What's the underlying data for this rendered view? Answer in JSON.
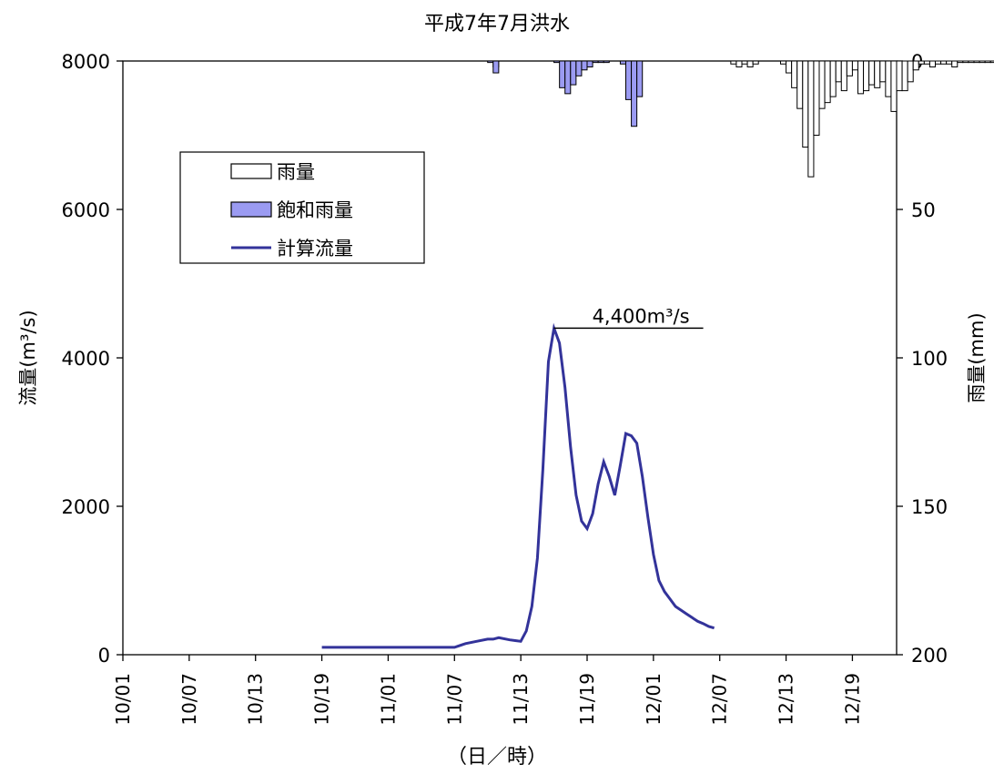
{
  "chart_data": {
    "type": "bar+line",
    "title": "平成7年7月洪水",
    "xlabel": "（日／時）",
    "ylabel_left": "流量(m³/s)",
    "ylabel_right": "雨量(mm)",
    "ylim_left": [
      0,
      8000
    ],
    "ylim_right": [
      200,
      0
    ],
    "left_ticks": [
      "0",
      "2000",
      "4000",
      "6000",
      "8000"
    ],
    "right_ticks": [
      "0",
      "50",
      "100",
      "150",
      "200"
    ],
    "x_ticks": [
      "10/01",
      "10/07",
      "10/13",
      "10/19",
      "11/01",
      "11/07",
      "11/13",
      "11/19",
      "12/01",
      "12/07",
      "12/13",
      "12/19"
    ],
    "legend": {
      "position": "upper-left",
      "rain": "雨量",
      "saturated_rain": "飽和雨量",
      "flow": "計算流量"
    },
    "annotation": {
      "text": "4,400m³/s",
      "value": 4400
    },
    "rainfall_mm": [
      0,
      0,
      0,
      0,
      0,
      0,
      0,
      0,
      0,
      0,
      0,
      0,
      0,
      0,
      0,
      0,
      0,
      0,
      0,
      0,
      0,
      0,
      0,
      0,
      0,
      0,
      0,
      0,
      0,
      0,
      0,
      0,
      0,
      0,
      0,
      0,
      0,
      0,
      0,
      0,
      0,
      0,
      0,
      0,
      0,
      0,
      0,
      0,
      0,
      0,
      0,
      0,
      0,
      0,
      0,
      0,
      0,
      0,
      0,
      0,
      0,
      0,
      0,
      0,
      0,
      0,
      0,
      2,
      0,
      0,
      0,
      0,
      0,
      0,
      0,
      0,
      0,
      0,
      0,
      0,
      0,
      0,
      0,
      0,
      0,
      0,
      0,
      0,
      0,
      0,
      0,
      0,
      0,
      0,
      0,
      0,
      0,
      0,
      0,
      0,
      0,
      0,
      0,
      0,
      0,
      0,
      0,
      0,
      0,
      0,
      1,
      2,
      1,
      2,
      1,
      0,
      0,
      0,
      0,
      1,
      4,
      9,
      16,
      29,
      39,
      25,
      16,
      14,
      12,
      7,
      10,
      5,
      3,
      11,
      10,
      8,
      9,
      7,
      12,
      17,
      10,
      10,
      7,
      3,
      1,
      1,
      2,
      1,
      1,
      1,
      2,
      0.5,
      0.5,
      0.5,
      0.5,
      0.5,
      0.5,
      0.5
    ],
    "saturated_rain_mm": [
      0,
      0,
      0,
      0,
      0,
      0,
      0,
      0,
      0,
      0,
      0,
      0,
      0,
      0,
      0,
      0,
      0,
      0,
      0,
      0,
      0,
      0,
      0,
      0,
      0,
      0,
      0,
      0,
      0,
      0,
      0,
      0,
      0,
      0,
      0,
      0,
      0,
      0,
      0,
      0,
      0,
      0,
      0,
      0,
      0,
      0,
      0,
      0,
      0,
      0,
      0,
      0,
      0,
      0,
      0,
      0,
      0,
      0,
      0,
      0,
      0,
      0,
      0,
      0,
      0,
      0,
      0.5,
      4,
      0,
      0,
      0,
      0,
      0,
      0,
      0,
      0,
      0,
      0,
      0.5,
      9,
      11,
      8,
      5,
      3,
      2,
      0.5,
      0.5,
      0.5,
      0,
      0,
      1,
      13,
      22,
      12,
      0,
      0,
      0,
      0,
      0,
      0,
      0,
      0,
      0,
      0,
      0,
      0,
      0,
      0,
      0,
      0,
      0,
      0,
      0,
      0,
      0,
      0,
      0,
      0,
      0,
      0,
      0,
      0,
      0,
      0,
      0,
      0,
      0,
      0,
      0,
      0,
      0,
      0,
      0,
      0,
      0,
      0,
      0,
      0,
      0,
      0,
      0,
      0,
      0,
      0,
      0,
      0,
      0,
      0,
      0,
      0,
      0,
      0,
      0,
      0,
      0,
      0
    ],
    "flow_points": [
      [
        36,
        100
      ],
      [
        60,
        100
      ],
      [
        62,
        150
      ],
      [
        64,
        180
      ],
      [
        66,
        210
      ],
      [
        67,
        210
      ],
      [
        68,
        230
      ],
      [
        70,
        200
      ],
      [
        71,
        190
      ],
      [
        72,
        180
      ],
      [
        73,
        320
      ],
      [
        74,
        650
      ],
      [
        75,
        1300
      ],
      [
        76,
        2500
      ],
      [
        77,
        3950
      ],
      [
        78,
        4400
      ],
      [
        79,
        4200
      ],
      [
        80,
        3600
      ],
      [
        81,
        2800
      ],
      [
        82,
        2150
      ],
      [
        83,
        1800
      ],
      [
        84,
        1700
      ],
      [
        85,
        1900
      ],
      [
        86,
        2300
      ],
      [
        87,
        2600
      ],
      [
        88,
        2400
      ],
      [
        89,
        2150
      ],
      [
        90,
        2550
      ],
      [
        91,
        2980
      ],
      [
        92,
        2950
      ],
      [
        93,
        2850
      ],
      [
        94,
        2400
      ],
      [
        95,
        1850
      ],
      [
        96,
        1350
      ],
      [
        97,
        1000
      ],
      [
        98,
        850
      ],
      [
        99,
        750
      ],
      [
        100,
        650
      ],
      [
        101,
        600
      ],
      [
        102,
        550
      ],
      [
        103,
        500
      ],
      [
        104,
        450
      ],
      [
        105,
        420
      ],
      [
        106,
        380
      ],
      [
        107,
        360
      ]
    ]
  }
}
